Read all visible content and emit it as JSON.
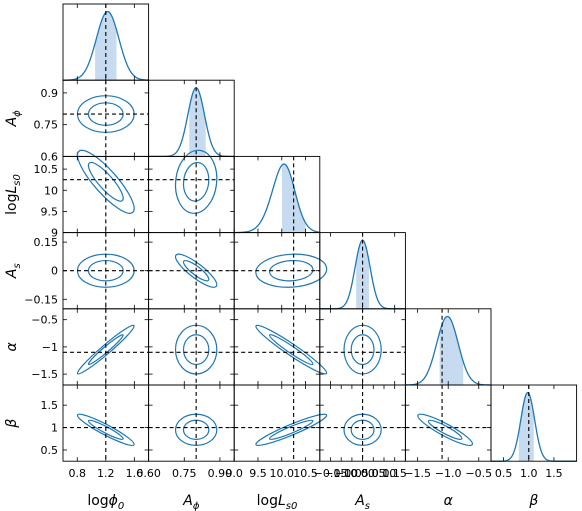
{
  "chart_data": {
    "type": "corner",
    "line_color": "#1f77b4",
    "band_color": "#c6dbef",
    "truth_line_color": "#000000",
    "contour_levels": [
      "68%",
      "95%"
    ],
    "parameters": [
      {
        "id": "logphi0",
        "label": {
          "base": "log",
          "sym": "ϕ",
          "sub": "0"
        },
        "range": [
          0.6,
          1.8
        ],
        "ticks": [
          0.8,
          1.2,
          1.6
        ],
        "tick_labels": [
          "0.8",
          "1.2",
          "1.6"
        ],
        "truth": 1.2,
        "median": 1.2,
        "sigma": 0.16,
        "skew": 0.15,
        "band": [
          1.05,
          1.35
        ]
      },
      {
        "id": "Aphi",
        "label": {
          "base": "",
          "sym": "A",
          "sub": "ϕ"
        },
        "range": [
          0.6,
          0.96
        ],
        "ticks": [
          0.6,
          0.75,
          0.9
        ],
        "tick_labels": [
          "0.6",
          "0.75",
          "0.9"
        ],
        "bottom_ticks": [
          0.6,
          0.75,
          0.9
        ],
        "bottom_tick_labels": [
          "0.60",
          "0.75",
          "0.90"
        ],
        "truth": 0.8,
        "median": 0.8,
        "sigma": 0.035,
        "skew": 0,
        "band": [
          0.77,
          0.84
        ]
      },
      {
        "id": "logLs0",
        "label": {
          "base": "log",
          "sym": "L",
          "sub": "s0"
        },
        "range": [
          9.0,
          10.8
        ],
        "ticks": [
          9,
          9.5,
          10,
          10.5
        ],
        "tick_labels": [
          "9",
          "9.5",
          "10",
          "10.5"
        ],
        "bottom_ticks": [
          9.0,
          9.5,
          10.0,
          10.5
        ],
        "bottom_tick_labels": [
          "9.0",
          "9.5",
          "10.0",
          "10.5"
        ],
        "truth": 10.25,
        "median": 10.2,
        "sigma": 0.3,
        "skew": -0.8,
        "band": [
          10.0,
          10.5
        ]
      },
      {
        "id": "As",
        "label": {
          "base": "",
          "sym": "A",
          "sub": "s"
        },
        "range": [
          -0.2,
          0.2
        ],
        "ticks": [
          -0.15,
          0,
          0.15
        ],
        "tick_labels": [
          "−0.15",
          "0",
          "0.15"
        ],
        "bottom_ticks": [
          -0.15,
          -0.1,
          -0.05,
          0,
          0.05,
          0.1,
          0.15
        ],
        "bottom_tick_labels": [
          "−0.15",
          "−0.10",
          "−0.05",
          "0.00",
          "0.05",
          "0.10",
          "0.15"
        ],
        "truth": 0.0,
        "median": 0.0,
        "sigma": 0.035,
        "skew": 0,
        "band": [
          -0.03,
          0.03
        ]
      },
      {
        "id": "alpha",
        "label": {
          "base": "",
          "sym": "α",
          "sub": ""
        },
        "range": [
          -1.7,
          -0.3
        ],
        "ticks": [
          -1.5,
          -1,
          -0.5
        ],
        "tick_labels": [
          "−1.5",
          "−1",
          "−0.5"
        ],
        "bottom_ticks": [
          -1.5,
          -1.0,
          -0.5
        ],
        "bottom_tick_labels": [
          "−1.5",
          "−1.0",
          "−0.5"
        ],
        "truth": -1.1,
        "median": -1.05,
        "sigma": 0.18,
        "skew": 0.2,
        "band": [
          -1.15,
          -0.75
        ]
      },
      {
        "id": "beta",
        "label": {
          "base": "",
          "sym": "β",
          "sub": ""
        },
        "range": [
          0.25,
          1.95
        ],
        "ticks": [
          0.5,
          1,
          1.5
        ],
        "tick_labels": [
          "0.5",
          "1",
          "1.5"
        ],
        "bottom_ticks": [
          0.5,
          1.0,
          1.5
        ],
        "bottom_tick_labels": [
          "0.5",
          "1.0",
          "1.5"
        ],
        "truth": 1.0,
        "median": 0.95,
        "sigma": 0.14,
        "skew": 0.2,
        "band": [
          0.8,
          1.1
        ]
      }
    ],
    "pairs": [
      {
        "x": "logphi0",
        "y": "Aphi",
        "corr": 0.0,
        "tilt": 0
      },
      {
        "x": "logphi0",
        "y": "logLs0",
        "corr": -0.85,
        "tilt": 0
      },
      {
        "x": "Aphi",
        "y": "logLs0",
        "corr": 0.1,
        "tilt": 0
      },
      {
        "x": "logphi0",
        "y": "As",
        "corr": 0.0,
        "tilt": 0
      },
      {
        "x": "Aphi",
        "y": "As",
        "corr": -0.85,
        "tilt": 0
      },
      {
        "x": "logLs0",
        "y": "As",
        "corr": 0.1,
        "tilt": 0
      },
      {
        "x": "logphi0",
        "y": "alpha",
        "corr": 0.97,
        "tilt": 0
      },
      {
        "x": "Aphi",
        "y": "alpha",
        "corr": 0.0,
        "tilt": 0
      },
      {
        "x": "logLs0",
        "y": "alpha",
        "corr": -0.96,
        "tilt": 0
      },
      {
        "x": "As",
        "y": "alpha",
        "corr": 0.0,
        "tilt": 0
      },
      {
        "x": "logphi0",
        "y": "beta",
        "corr": -0.93,
        "tilt": 0
      },
      {
        "x": "Aphi",
        "y": "beta",
        "corr": 0.0,
        "tilt": 0
      },
      {
        "x": "logLs0",
        "y": "beta",
        "corr": 0.93,
        "tilt": 0
      },
      {
        "x": "As",
        "y": "beta",
        "corr": 0.0,
        "tilt": 0
      },
      {
        "x": "alpha",
        "y": "beta",
        "corr": -0.9,
        "tilt": 0
      }
    ]
  }
}
